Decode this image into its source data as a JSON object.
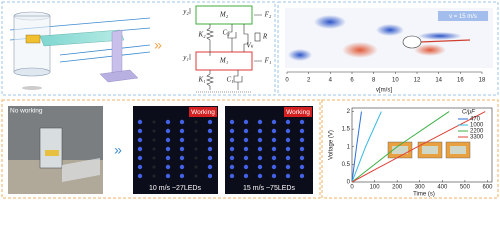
{
  "diagram": {
    "labels": [
      "M₂",
      "M₁",
      "K₂",
      "C₂",
      "Vₖ",
      "R",
      "K₁",
      "C₁",
      "F₂",
      "F₁",
      "y₂",
      "y₁"
    ]
  },
  "flow": {
    "speed_label": "v = 15 m/s",
    "axis_label": "v[m/s]",
    "lim": [
      0,
      18
    ],
    "ticks": [
      0,
      2,
      4,
      6,
      8,
      10,
      12,
      14,
      16,
      18
    ]
  },
  "photos": {
    "idle_label": "No working",
    "panels": [
      {
        "status": "Working",
        "caption": "10 m/s  ~27LEDs"
      },
      {
        "status": "Working",
        "caption": "15 m/s  ~75LEDs"
      }
    ]
  },
  "chart_data": {
    "type": "line",
    "xlabel": "Time (s)",
    "ylabel": "Voltage (V)",
    "legend_title": "C/μF",
    "xlim": [
      0,
      620
    ],
    "ylim": [
      0,
      2.1
    ],
    "xticks": [
      0,
      100,
      200,
      300,
      400,
      500,
      600
    ],
    "yticks": [
      0,
      0.5,
      1,
      1.5,
      2
    ],
    "series": [
      {
        "name": "470",
        "color": "#2a6fd6",
        "x": [
          0,
          20,
          42
        ],
        "values": [
          0,
          1,
          2
        ]
      },
      {
        "name": "1000",
        "color": "#35b8e0",
        "x": [
          0,
          60,
          130
        ],
        "values": [
          0,
          1,
          2
        ]
      },
      {
        "name": "2200",
        "color": "#3cb043",
        "x": [
          0,
          200,
          430
        ],
        "values": [
          0,
          1,
          2
        ]
      },
      {
        "name": "3300",
        "color": "#e0403a",
        "x": [
          0,
          290,
          590
        ],
        "values": [
          0,
          1,
          2
        ]
      }
    ]
  }
}
